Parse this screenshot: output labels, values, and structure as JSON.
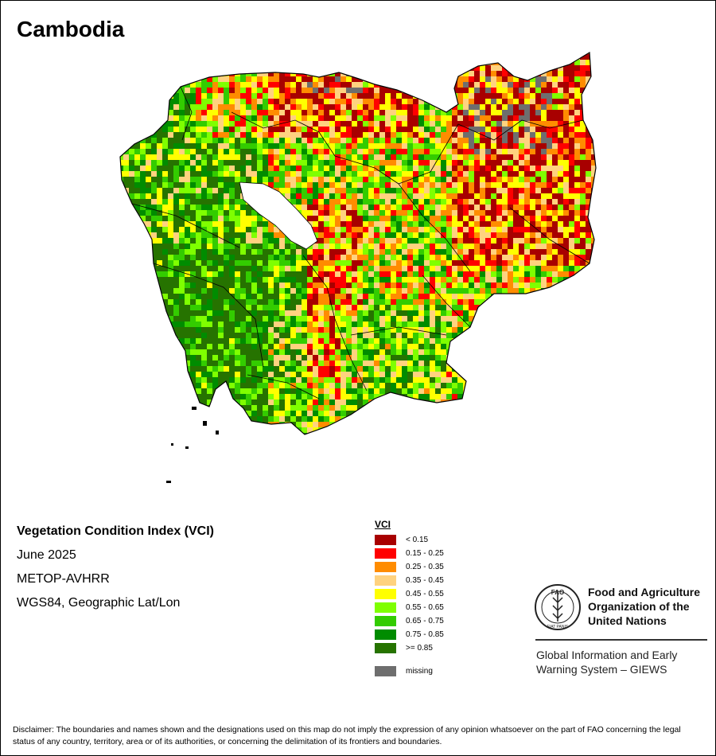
{
  "title": "Cambodia",
  "info": {
    "product": "Vegetation Condition Index (VCI)",
    "period": "June 2025",
    "sensor": "METOP-AVHRR",
    "projection": "WGS84, Geographic Lat/Lon"
  },
  "legend": {
    "title": "VCI",
    "classes": [
      {
        "label": "< 0.15",
        "color": "#a80000"
      },
      {
        "label": "0.15 - 0.25",
        "color": "#ff0000"
      },
      {
        "label": "0.25 - 0.35",
        "color": "#ff8c00"
      },
      {
        "label": "0.35 - 0.45",
        "color": "#ffd27f"
      },
      {
        "label": "0.45 - 0.55",
        "color": "#ffff00"
      },
      {
        "label": "0.55 - 0.65",
        "color": "#7fff00"
      },
      {
        "label": "0.65 - 0.75",
        "color": "#33cc00"
      },
      {
        "label": "0.75 - 0.85",
        "color": "#008c00"
      },
      {
        "label": ">= 0.85",
        "color": "#267300"
      }
    ],
    "missing": {
      "label": "missing",
      "color": "#6e6e6e"
    }
  },
  "org": {
    "logo_text": "FAO",
    "logo_motto": "FIAT PANIS",
    "name_line1": "Food and Agriculture",
    "name_line2": "Organization of the",
    "name_line3": "United Nations",
    "system_line1": "Global Information and Early",
    "system_line2": "Warning System – GIEWS"
  },
  "disclaimer": "Disclaimer: The boundaries and names shown and the designations used on this map do not imply the expression of any opinion whatsoever on the part of FAO concerning the legal status of any country, territory, area or of its authorities, or concerning the delimitation of its frontiers and boundaries.",
  "map": {
    "fill_colors": [
      "#a80000",
      "#ff0000",
      "#ff8c00",
      "#ffd27f",
      "#ffff00",
      "#7fff00",
      "#33cc00",
      "#008c00",
      "#267300",
      "#6e6e6e"
    ],
    "lake_color": "#ffffff",
    "border_color": "#000000"
  }
}
